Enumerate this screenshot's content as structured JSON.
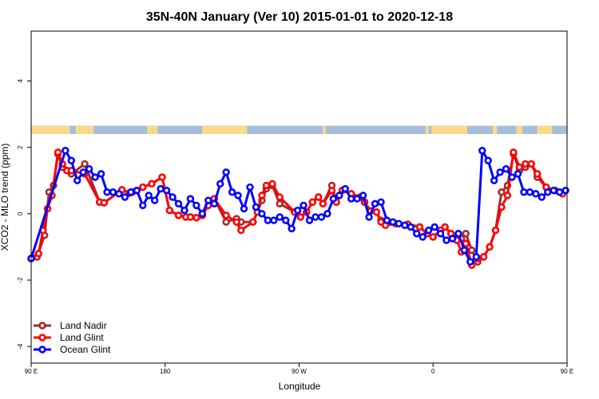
{
  "chart_data": {
    "type": "line",
    "title": "35N-40N January (Ver 10)   2015-01-01 to 2020-12-18",
    "xlabel": "Longitude",
    "ylabel": "XCO2 - MLO trend (ppm)",
    "xlim": [
      90,
      450
    ],
    "ylim": [
      -4.5,
      5.5
    ],
    "x_ticks": [
      {
        "value": 90,
        "label": "90 E"
      },
      {
        "value": 180,
        "label": "180"
      },
      {
        "value": 270,
        "label": "90 W"
      },
      {
        "value": 360,
        "label": "0"
      },
      {
        "value": 450,
        "label": "90 E"
      }
    ],
    "y_ticks": [
      {
        "value": -4,
        "label": "-4"
      },
      {
        "value": -2,
        "label": "-2"
      },
      {
        "value": 0,
        "label": "0"
      },
      {
        "value": 2,
        "label": "2"
      },
      {
        "value": 4,
        "label": "4"
      }
    ],
    "land_mask": {
      "y_range": [
        2.4,
        2.65
      ],
      "ocean_color": "#a5bedc",
      "land_color": "#fcd98a",
      "land_segments": [
        [
          90,
          116
        ],
        [
          120,
          132
        ],
        [
          168,
          175
        ],
        [
          205,
          235
        ],
        [
          286,
          288
        ],
        [
          355,
          357
        ],
        [
          359,
          383
        ],
        [
          400,
          403
        ],
        [
          416,
          420
        ],
        [
          430,
          440
        ]
      ]
    },
    "series": [
      {
        "name": "Land Nadir",
        "color": "#a52a2a",
        "x": [
          90,
          94,
          99,
          102,
          105,
          108,
          111,
          114,
          117,
          126,
          136,
          139,
          151,
          156,
          158,
          165,
          171,
          178,
          183,
          189,
          194,
          197,
          201,
          205,
          209,
          213,
          221,
          228,
          231,
          239,
          242,
          245,
          248,
          252,
          257,
          267,
          271,
          275,
          279,
          283,
          286,
          292,
          295,
          299,
          305,
          311,
          314,
          318,
          322,
          325,
          328,
          335,
          343,
          351,
          356,
          360,
          365,
          368,
          372,
          376,
          379,
          382,
          386,
          390,
          394,
          398,
          402,
          406,
          410,
          414,
          418,
          422,
          426,
          430,
          436,
          442,
          447
        ],
        "y": [
          -1.35,
          -1.3,
          -0.65,
          0.65,
          0.85,
          1.8,
          1.4,
          1.3,
          1.2,
          1.5,
          0.35,
          0.33,
          0.72,
          0.62,
          0.65,
          0.8,
          0.9,
          1.1,
          0.1,
          -0.05,
          -0.1,
          -0.1,
          -0.12,
          -0.05,
          0.25,
          0.45,
          -0.25,
          -0.15,
          -0.25,
          -0.25,
          0.05,
          0.4,
          0.75,
          0.85,
          0.3,
          0.05,
          -0.1,
          0.05,
          0.35,
          0.5,
          0.3,
          0.85,
          0.35,
          0.7,
          0.6,
          0.5,
          0.35,
          0.08,
          0.05,
          -0.2,
          -0.3,
          -0.3,
          -0.32,
          -0.4,
          -0.6,
          -0.7,
          -0.5,
          -0.4,
          -0.6,
          -0.8,
          -0.75,
          -0.6,
          -1.1,
          -1.45,
          -1.3,
          -1.0,
          -0.5,
          0.65,
          0.85,
          1.8,
          1.3,
          1.4,
          1.5,
          1.1,
          0.8,
          0.7,
          0.6
        ]
      },
      {
        "name": "Land Glint",
        "color": "#ff0000",
        "x": [
          90,
          95,
          98,
          101,
          104,
          108,
          111,
          114,
          117,
          126,
          136,
          139,
          151,
          156,
          158,
          165,
          171,
          178,
          183,
          189,
          194,
          197,
          201,
          205,
          209,
          213,
          221,
          228,
          231,
          239,
          242,
          245,
          248,
          252,
          257,
          267,
          271,
          275,
          279,
          283,
          286,
          292,
          295,
          299,
          305,
          311,
          314,
          318,
          322,
          325,
          328,
          335,
          343,
          351,
          356,
          360,
          365,
          368,
          372,
          376,
          379,
          382,
          386,
          390,
          394,
          398,
          402,
          406,
          410,
          414,
          418,
          422,
          426,
          430,
          436,
          442,
          447
        ],
        "y": [
          -1.35,
          -1.2,
          -0.5,
          0.15,
          0.55,
          1.85,
          1.5,
          1.3,
          1.3,
          1.2,
          0.35,
          0.33,
          0.72,
          0.62,
          0.65,
          0.8,
          0.9,
          1.1,
          0.1,
          -0.05,
          -0.1,
          -0.1,
          -0.12,
          -0.05,
          0.25,
          0.45,
          -0.05,
          -0.25,
          -0.5,
          -0.25,
          0.05,
          0.55,
          0.85,
          0.9,
          0.5,
          0.05,
          -0.1,
          0.05,
          0.35,
          0.5,
          0.3,
          0.7,
          0.35,
          0.7,
          0.6,
          0.5,
          0.35,
          0.08,
          0.05,
          -0.25,
          -0.35,
          -0.3,
          -0.32,
          -0.4,
          -0.6,
          -0.7,
          -0.5,
          -0.4,
          -0.6,
          -0.8,
          -1.15,
          -0.9,
          -1.55,
          -1.35,
          -1.3,
          -1.0,
          -0.5,
          0.2,
          0.55,
          1.85,
          1.4,
          1.5,
          1.5,
          1.2,
          0.8,
          0.7,
          0.6
        ]
      },
      {
        "name": "Ocean Glint",
        "color": "#0000ff",
        "x": [
          90,
          113,
          117,
          121,
          125,
          129,
          133,
          137,
          141,
          145,
          149,
          153,
          157,
          161,
          165,
          169,
          173,
          177,
          181,
          185,
          189,
          193,
          197,
          201,
          205,
          209,
          213,
          217,
          221,
          225,
          229,
          233,
          237,
          241,
          245,
          249,
          253,
          257,
          261,
          265,
          269,
          273,
          277,
          281,
          285,
          289,
          293,
          297,
          301,
          305,
          309,
          313,
          317,
          321,
          325,
          329,
          333,
          337,
          341,
          345,
          349,
          353,
          357,
          361,
          365,
          369,
          373,
          377,
          381,
          385,
          389,
          393,
          397,
          401,
          405,
          409,
          413,
          417,
          421,
          425,
          429,
          433,
          437,
          441,
          445,
          449
        ],
        "y": [
          -1.35,
          1.9,
          1.6,
          1.0,
          1.25,
          1.35,
          1.1,
          1.2,
          0.65,
          0.65,
          0.6,
          0.5,
          0.65,
          0.7,
          0.25,
          0.55,
          0.4,
          0.75,
          0.7,
          0.5,
          0.3,
          0.1,
          0.45,
          0.25,
          0.0,
          0.4,
          0.3,
          0.9,
          1.25,
          0.65,
          0.55,
          0.15,
          0.8,
          0.2,
          0.0,
          -0.2,
          -0.2,
          -0.1,
          -0.2,
          -0.45,
          0.1,
          0.25,
          -0.2,
          -0.1,
          -0.1,
          0.0,
          0.45,
          0.55,
          0.75,
          0.45,
          0.45,
          0.55,
          -0.1,
          0.3,
          0.35,
          -0.2,
          -0.25,
          -0.3,
          -0.35,
          -0.4,
          -0.6,
          -0.7,
          -0.5,
          -0.4,
          -0.6,
          -0.8,
          -0.75,
          -0.6,
          -1.1,
          -1.45,
          -1.3,
          1.9,
          1.6,
          1.0,
          1.25,
          1.35,
          1.1,
          1.2,
          0.65,
          0.65,
          0.6,
          0.5,
          0.65,
          0.7,
          0.65,
          0.7
        ]
      }
    ],
    "legend": {
      "position": "bottom-left",
      "entries": [
        "Land Nadir",
        "Land Glint",
        "Ocean Glint"
      ]
    },
    "grid": false
  }
}
